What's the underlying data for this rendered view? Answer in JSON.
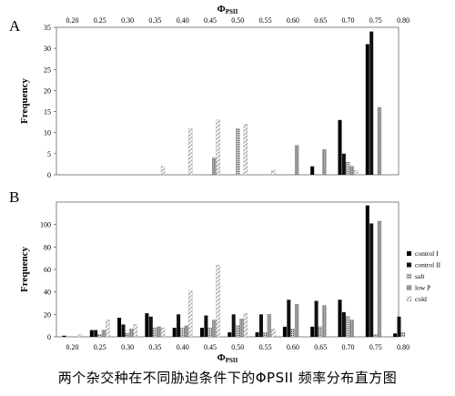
{
  "caption": "两个杂交种在不同胁迫条件下的ΦPSII 频率分布直方图",
  "patterns": {
    "control_I": "solid-black",
    "control_II": "solid-black",
    "salt": "dotted-dark",
    "low_P": "dotted-gray",
    "cold": "hatched-light"
  },
  "chart_data": [
    {
      "type": "bar",
      "panel_label": "A",
      "xlabel_main": "Φ",
      "xlabel_sub": "PSII",
      "ylabel": "Frequency",
      "x_ticks": [
        "0.20",
        "0.25",
        "0.30",
        "0.35",
        "0.40",
        "0.45",
        "0.50",
        "0.55",
        "0.60",
        "0.65",
        "0.70",
        "0.75",
        "0.80"
      ],
      "y_ticks": [
        "0",
        "5",
        "10",
        "15",
        "20",
        "25",
        "30",
        "35"
      ],
      "ylim": [
        0,
        35
      ],
      "x_axis_position": "top",
      "series": [
        {
          "values": [
            0,
            0,
            0,
            0,
            0,
            0,
            0,
            0,
            0,
            2,
            13,
            31,
            0
          ]
        },
        {
          "values": [
            0,
            0,
            0,
            0,
            0,
            0,
            0,
            0,
            0,
            0,
            5,
            34,
            0
          ]
        },
        {
          "values": [
            0,
            0,
            0,
            0,
            0,
            0,
            11,
            0,
            0,
            0,
            3,
            0,
            0
          ]
        },
        {
          "values": [
            0,
            0,
            0,
            0,
            0,
            4,
            0,
            0,
            7,
            6,
            2,
            16,
            0
          ]
        },
        {
          "values": [
            0,
            0,
            0,
            2,
            11,
            13,
            12,
            1,
            0,
            0,
            1,
            0,
            0
          ]
        }
      ]
    },
    {
      "type": "bar",
      "panel_label": "B",
      "xlabel_main": "Φ",
      "xlabel_sub": "PSII",
      "ylabel": "Frequency",
      "x_ticks": [
        "0.20",
        "0.25",
        "0.30",
        "0.35",
        "0.40",
        "0.45",
        "0.50",
        "0.55",
        "0.60",
        "0.65",
        "0.70",
        "0.75",
        "0.80"
      ],
      "y_ticks": [
        "0",
        "20",
        "40",
        "60",
        "80",
        "100"
      ],
      "ylim": [
        0,
        120
      ],
      "x_axis_position": "bottom",
      "legend_position": "right",
      "series": [
        {
          "name": "control I",
          "values": [
            1,
            6,
            17,
            21,
            8,
            8,
            4,
            4,
            9,
            9,
            33,
            117,
            3
          ]
        },
        {
          "name": "control II",
          "values": [
            0,
            6,
            11,
            18,
            20,
            19,
            20,
            20,
            33,
            32,
            22,
            101,
            18
          ]
        },
        {
          "name": "salt",
          "values": [
            0,
            2,
            3,
            8,
            8,
            8,
            10,
            4,
            7,
            9,
            18,
            2,
            4
          ]
        },
        {
          "name": "low P",
          "values": [
            0,
            6,
            7,
            9,
            10,
            15,
            16,
            20,
            29,
            28,
            15,
            103,
            0
          ]
        },
        {
          "name": "cold",
          "values": [
            2,
            15,
            11,
            8,
            41,
            64,
            21,
            7,
            0,
            0,
            0,
            0,
            0
          ]
        }
      ]
    }
  ]
}
